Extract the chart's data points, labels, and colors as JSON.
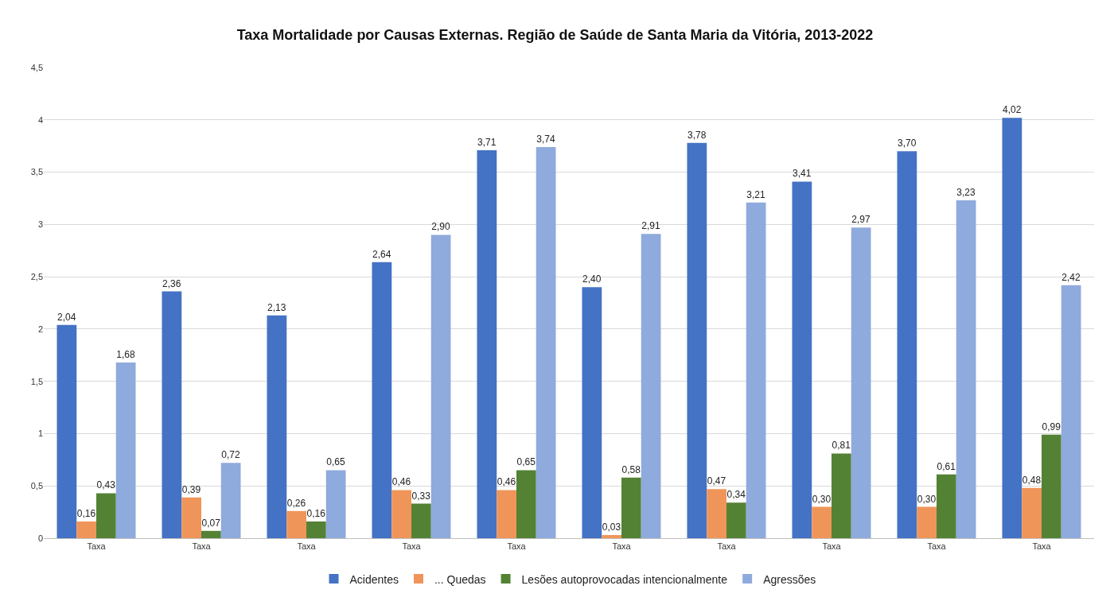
{
  "chart_data": {
    "type": "bar",
    "title": "Taxa Mortalidade por Causas Externas. Região de Saúde de Santa Maria da Vitória, 2013-2022",
    "categories": [
      "Taxa",
      "Taxa",
      "Taxa",
      "Taxa",
      "Taxa",
      "Taxa",
      "Taxa",
      "Taxa",
      "Taxa",
      "Taxa"
    ],
    "series": [
      {
        "name": "Acidentes",
        "color": "#4472c4",
        "values": [
          2.04,
          2.36,
          2.13,
          2.64,
          3.71,
          2.4,
          3.78,
          3.41,
          3.7,
          4.02
        ],
        "value_labels": [
          "2,04",
          "2,36",
          "2,13",
          "2,64",
          "3,71",
          "2,40",
          "3,78",
          "3,41",
          "3,70",
          "4,02"
        ]
      },
      {
        "name": "... Quedas",
        "color": "#f0955a",
        "values": [
          0.16,
          0.39,
          0.26,
          0.46,
          0.46,
          0.03,
          0.47,
          0.3,
          0.3,
          0.48
        ],
        "value_labels": [
          "0,16",
          "0,39",
          "0,26",
          "0,46",
          "0,46",
          "0,03",
          "0,47",
          "0,30",
          "0,30",
          "0,48"
        ]
      },
      {
        "name": "Lesões autoprovocadas intencionalmente",
        "color": "#548235",
        "values": [
          0.43,
          0.07,
          0.16,
          0.33,
          0.65,
          0.58,
          0.34,
          0.81,
          0.61,
          0.99
        ],
        "value_labels": [
          "0,43",
          "0,07",
          "0,16",
          "0,33",
          "0,65",
          "0,58",
          "0,34",
          "0,81",
          "0,61",
          "0,99"
        ]
      },
      {
        "name": "Agressões",
        "color": "#8faadc",
        "values": [
          1.68,
          0.72,
          0.65,
          2.9,
          3.74,
          2.91,
          3.21,
          2.97,
          3.23,
          2.42
        ],
        "value_labels": [
          "1,68",
          "0,72",
          "0,65",
          "2,90",
          "3,74",
          "2,91",
          "3,21",
          "2,97",
          "3,23",
          "2,42"
        ]
      }
    ],
    "ylim": [
      0,
      4.5
    ],
    "yticks": [
      0,
      {
        "value": 0.5,
        "label": "0,5"
      },
      1,
      {
        "value": 1.5,
        "label": "1,5"
      },
      2,
      {
        "value": 2.5,
        "label": "2,5"
      },
      3,
      {
        "value": 3.5,
        "label": "3,5"
      },
      4,
      {
        "value": 4.5,
        "label": "4,5"
      }
    ],
    "grid": "y",
    "legend": "bottom"
  }
}
